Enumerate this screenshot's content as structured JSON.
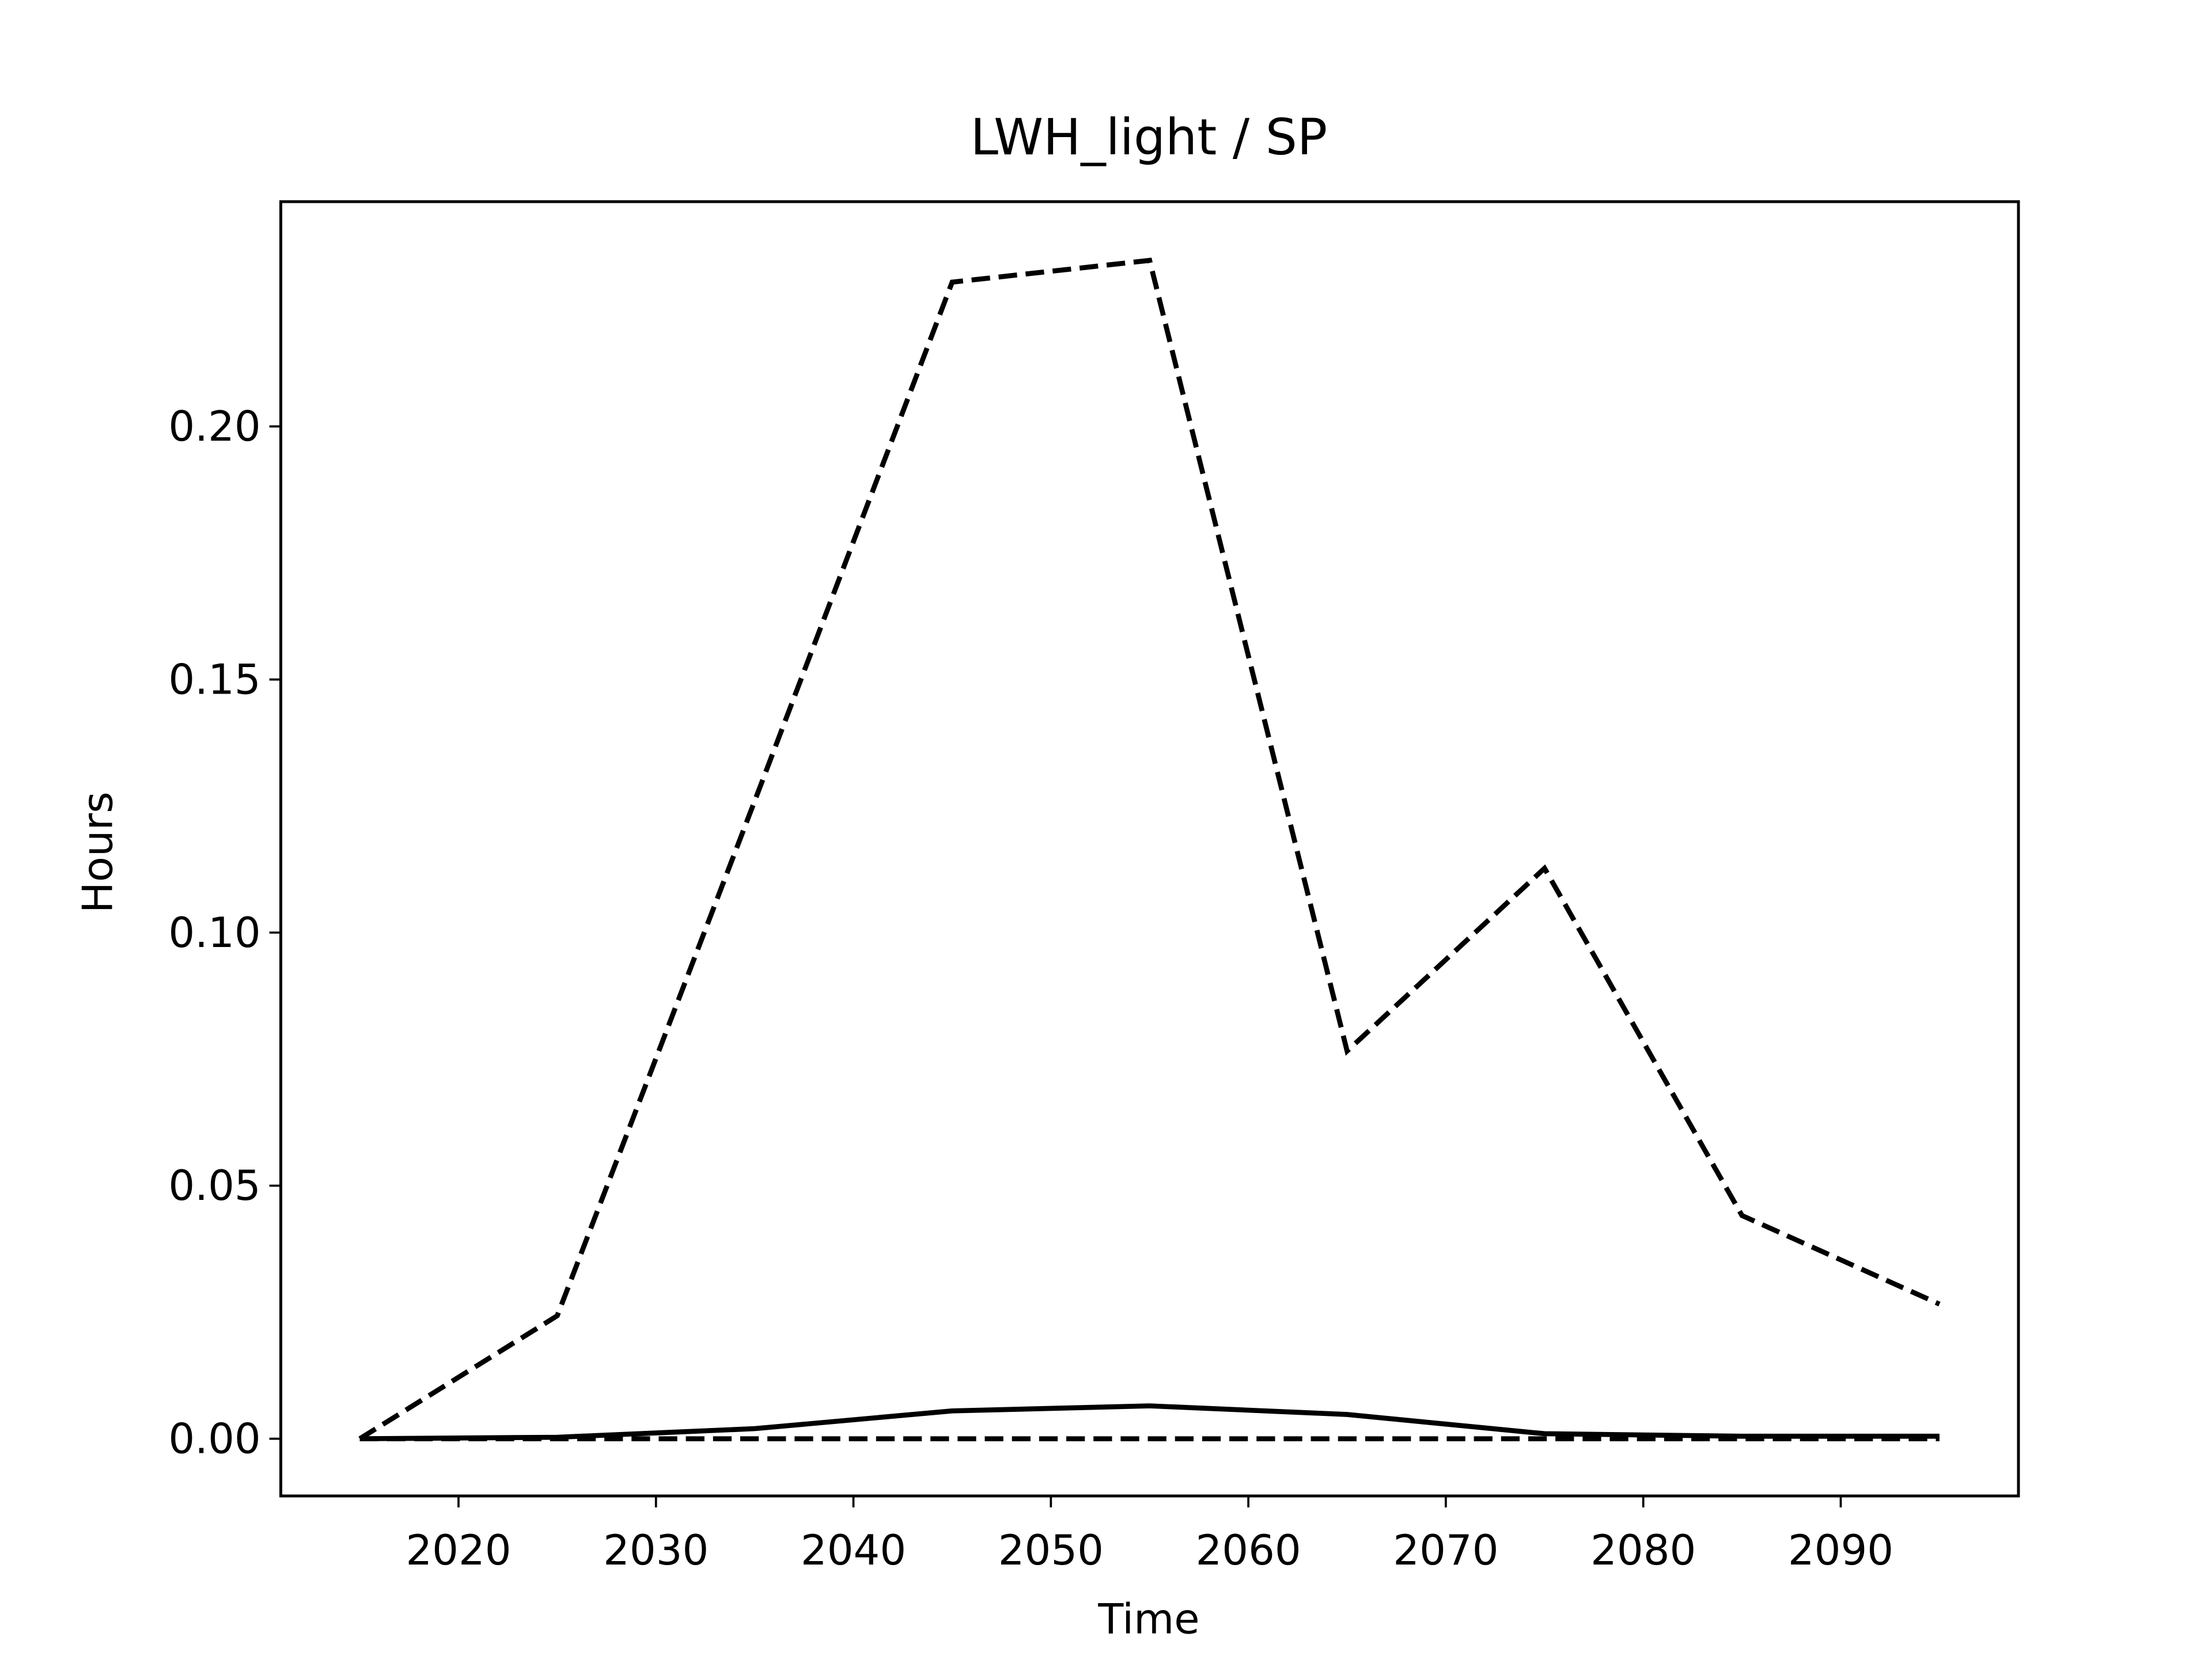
{
  "chart_data": {
    "type": "line",
    "title": "LWH_light / SP",
    "x_label": "Time",
    "y_label": "Hours",
    "x": [
      2015,
      2025,
      2035,
      2045,
      2055,
      2065,
      2075,
      2085,
      2095
    ],
    "series": [
      {
        "color": "#000000",
        "dash": "dashed",
        "values": [
          0.0,
          0.0243,
          0.126,
          0.2285,
          0.2328,
          0.0766,
          0.1127,
          0.0441,
          0.0266
        ]
      },
      {
        "color": "#000000",
        "dash": "solid",
        "values": [
          0.0,
          0.0003,
          0.002,
          0.0055,
          0.0065,
          0.0048,
          0.001,
          0.0005,
          0.0005
        ]
      },
      {
        "color": "#000000",
        "dash": "dashed",
        "values": [
          0.0,
          0.0,
          0.0,
          0.0,
          0.0,
          0.0,
          0.0,
          0.0,
          0.0
        ]
      }
    ],
    "xlim": [
      2011,
      2099
    ],
    "ylim": [
      -0.0113,
      0.2444
    ],
    "xticks": [
      2020,
      2030,
      2040,
      2050,
      2060,
      2070,
      2080,
      2090
    ],
    "yticks": [
      {
        "value": 0,
        "label": "0.00"
      },
      {
        "value": 0.05,
        "label": "0.05"
      },
      {
        "value": 0.1,
        "label": "0.10"
      },
      {
        "value": 0.15,
        "label": "0.15"
      },
      {
        "value": 0.2,
        "label": "0.20"
      }
    ],
    "grid": false
  }
}
